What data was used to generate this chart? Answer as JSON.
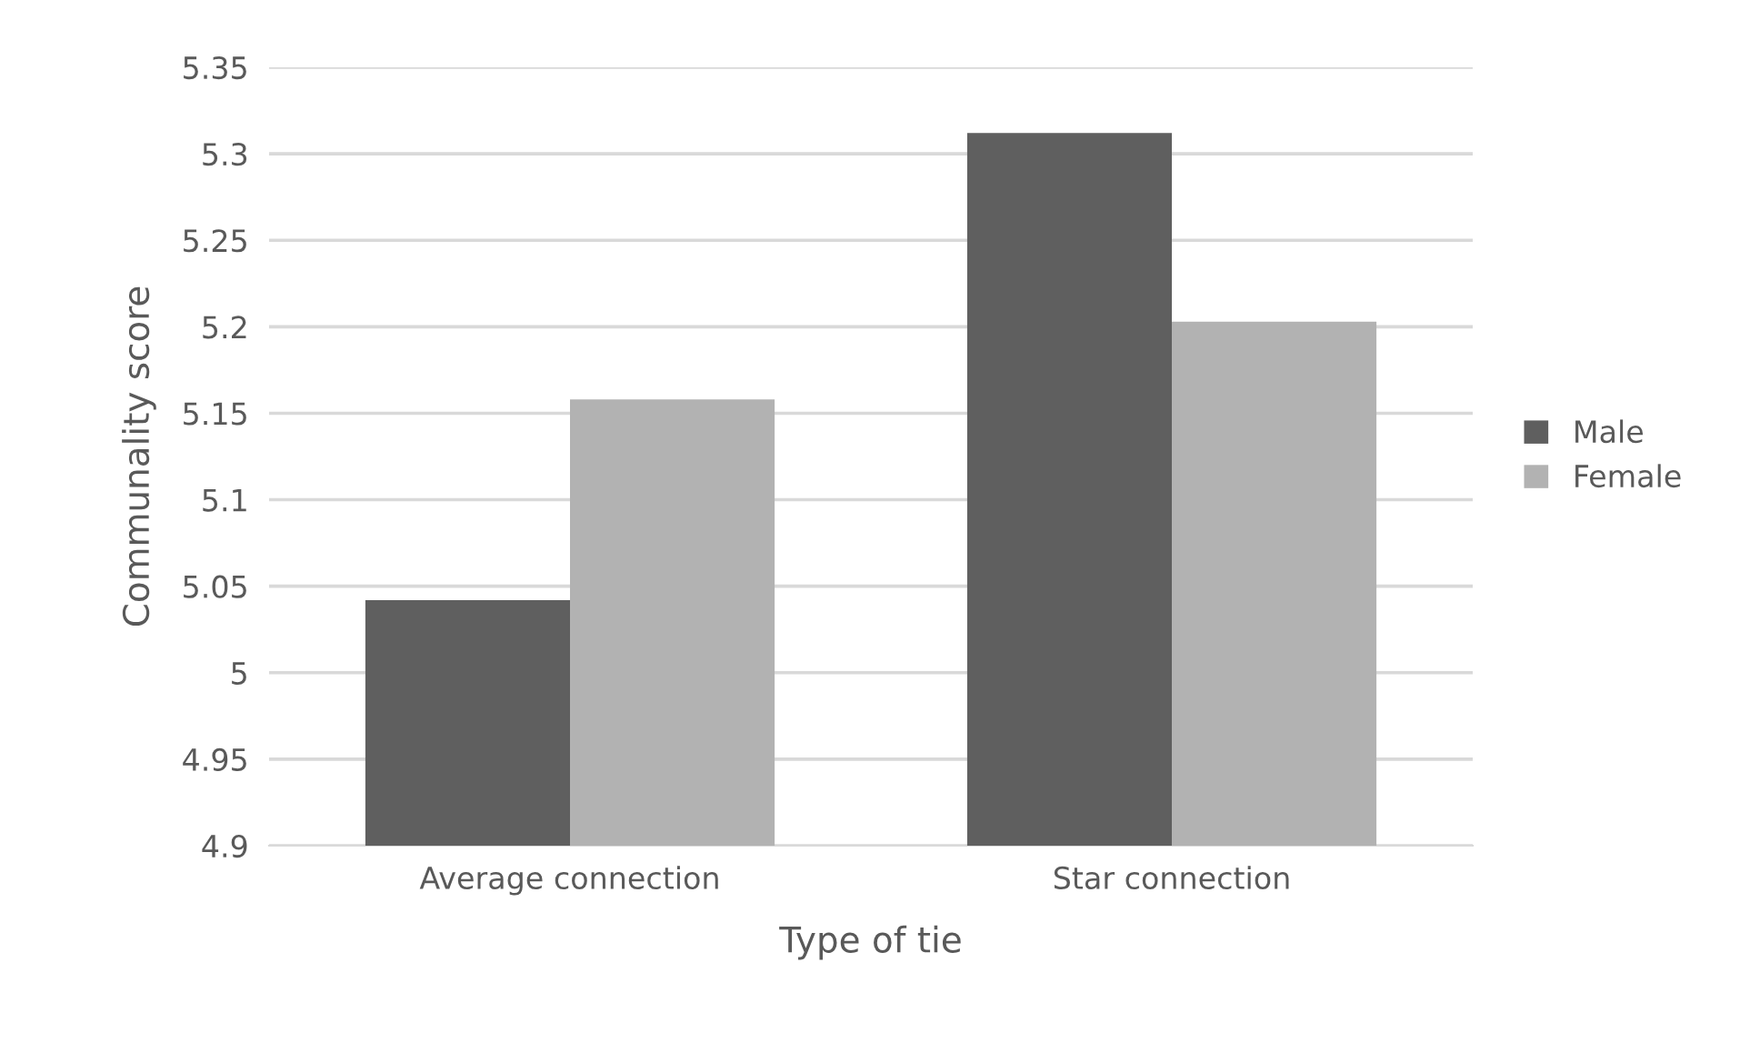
{
  "chart_data": {
    "type": "bar",
    "xlabel": "Type of tie",
    "ylabel": "Communality score",
    "categories": [
      "Average connection",
      "Star connection"
    ],
    "series": [
      {
        "name": "Male",
        "color": "#5f5f5f",
        "values": [
          5.042,
          5.312
        ]
      },
      {
        "name": "Female",
        "color": "#b2b2b2",
        "values": [
          5.158,
          5.203
        ]
      }
    ],
    "ylim": [
      4.9,
      5.35
    ],
    "yticks": [
      4.9,
      4.95,
      5,
      5.05,
      5.1,
      5.15,
      5.2,
      5.25,
      5.3,
      5.35
    ],
    "grid": "y",
    "legend": "right"
  }
}
